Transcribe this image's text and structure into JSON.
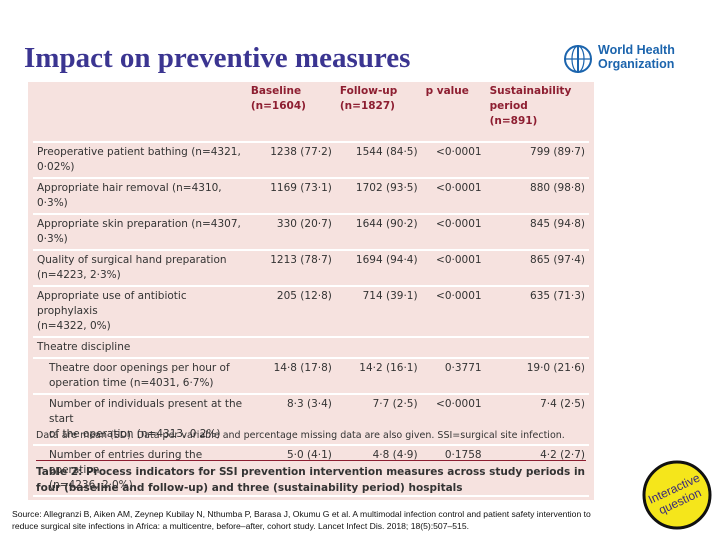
{
  "title": "Impact on preventive measures",
  "who": {
    "name": "World Health\nOrganization"
  },
  "table": {
    "header": [
      "",
      "Baseline\n(n=1604)",
      "Follow-up\n(n=1827)",
      "p value",
      "Sustainability\nperiod\n(n=891)"
    ],
    "rows": [
      [
        "Preoperative patient bathing (n=4321, 0·02%)",
        "1238 (77·2)",
        "1544 (84·5)",
        "<0·0001",
        "799 (89·7)"
      ],
      [
        "Appropriate hair removal (n=4310, 0·3%)",
        "1169 (73·1)",
        "1702 (93·5)",
        "<0·0001",
        "880 (98·8)"
      ],
      [
        "Appropriate skin preparation (n=4307, 0·3%)",
        "330 (20·7)",
        "1644 (90·2)",
        "<0·0001",
        "845 (94·8)"
      ],
      [
        "Quality of surgical hand preparation\n(n=4223, 2·3%)",
        "1213 (78·7)",
        "1694 (94·4)",
        "<0·0001",
        "865 (97·4)"
      ],
      [
        "Appropriate use of antibiotic prophylaxis\n(n=4322, 0%)",
        "205 (12·8)",
        "714 (39·1)",
        "<0·0001",
        "635 (71·3)"
      ]
    ],
    "section": "Theatre discipline",
    "subrows": [
      [
        "Theatre door openings per hour of\noperation time (n=4031, 6·7%)",
        "14·8 (17·8)",
        "14·2 (16·1)",
        "0·3771",
        "19·0 (21·6)"
      ],
      [
        "Number of individuals present at the start\nof the operation (n=4313, 0·2%)",
        "8·3 (3·4)",
        "7·7 (2·5)",
        "<0·0001",
        "7·4 (2·5)"
      ],
      [
        "Number of entries during the operation\n(n=4236, 2·0%)",
        "5·0 (4·1)",
        "4·8 (4·9)",
        "0·1758",
        "4·2 (2·7)"
      ]
    ],
    "footnote": "Data are mean (SD). Data per variable and percentage missing data are also given. SSI=surgical site infection.",
    "caption": "Table 2: Process indicators for SSI prevention intervention measures across study periods in four (baseline and follow-up) and three (sustainability period) hospitals"
  },
  "source": "Source: Allegranzi B, Aiken AM, Zeynep Kubilay N, Nthumba P, Barasa J, Okumu G et al. A multimodal infection control and patient safety intervention to reduce surgical site infections in Africa: a multicentre, before–after, cohort study. Lancet Infect Dis. 2018; 18(5):507–515.",
  "badge": "Interactive\nquestion"
}
